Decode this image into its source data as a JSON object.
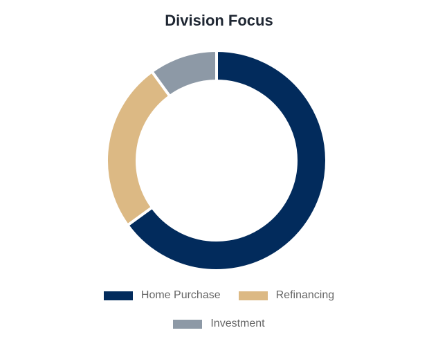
{
  "chart_data": {
    "type": "pie",
    "variant": "doughnut",
    "title": "Division Focus",
    "categories": [
      "Home Purchase",
      "Refinancing",
      "Investment"
    ],
    "values": [
      65,
      25,
      10
    ],
    "colors": [
      "#022b5c",
      "#dcb984",
      "#8d99a6"
    ],
    "legend_position": "bottom"
  },
  "legend": {
    "items": [
      {
        "label": "Home Purchase",
        "color": "#022b5c"
      },
      {
        "label": "Refinancing",
        "color": "#dcb984"
      },
      {
        "label": "Investment",
        "color": "#8d99a6"
      }
    ]
  }
}
